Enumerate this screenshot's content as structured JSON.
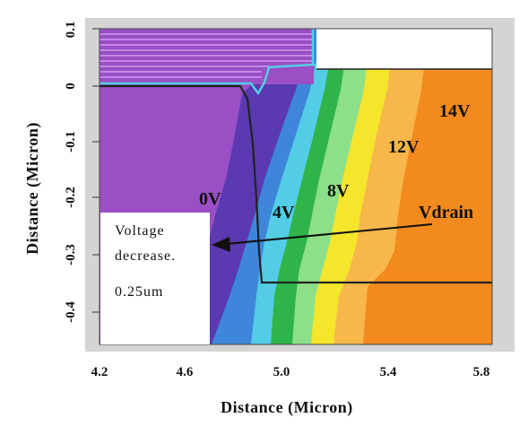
{
  "colors": {
    "purple": "#9a4fc4",
    "indigo": "#5b39b0",
    "blue": "#3e86d9",
    "cyan": "#53cde6",
    "green": "#2fb449",
    "light_green": "#8ddf8a",
    "yellow": "#f5e62c",
    "light_orange": "#f7b74a",
    "orange": "#f38a1e",
    "oxide_stripe": "#cf9cf0",
    "frame_gray": "#d4d4d4"
  },
  "x_axis": {
    "title": "Distance (Micron)",
    "ticks": [
      "4.2",
      "4.6",
      "5.0",
      "5.4",
      "5.8"
    ]
  },
  "y_axis": {
    "title": "Distance (Micron)",
    "ticks": [
      "0.1",
      "0",
      "-0.1",
      "-0.2",
      "-0.3",
      "-0.4"
    ]
  },
  "contour_labels": {
    "v0": "0V",
    "v4": "4V",
    "v8": "8V",
    "v12": "12V",
    "v14": "14V",
    "vdrain": "Vdrain"
  },
  "annotation_box": {
    "line1": "Voltage",
    "line2": "decrease.",
    "line3": "0.25um"
  }
}
